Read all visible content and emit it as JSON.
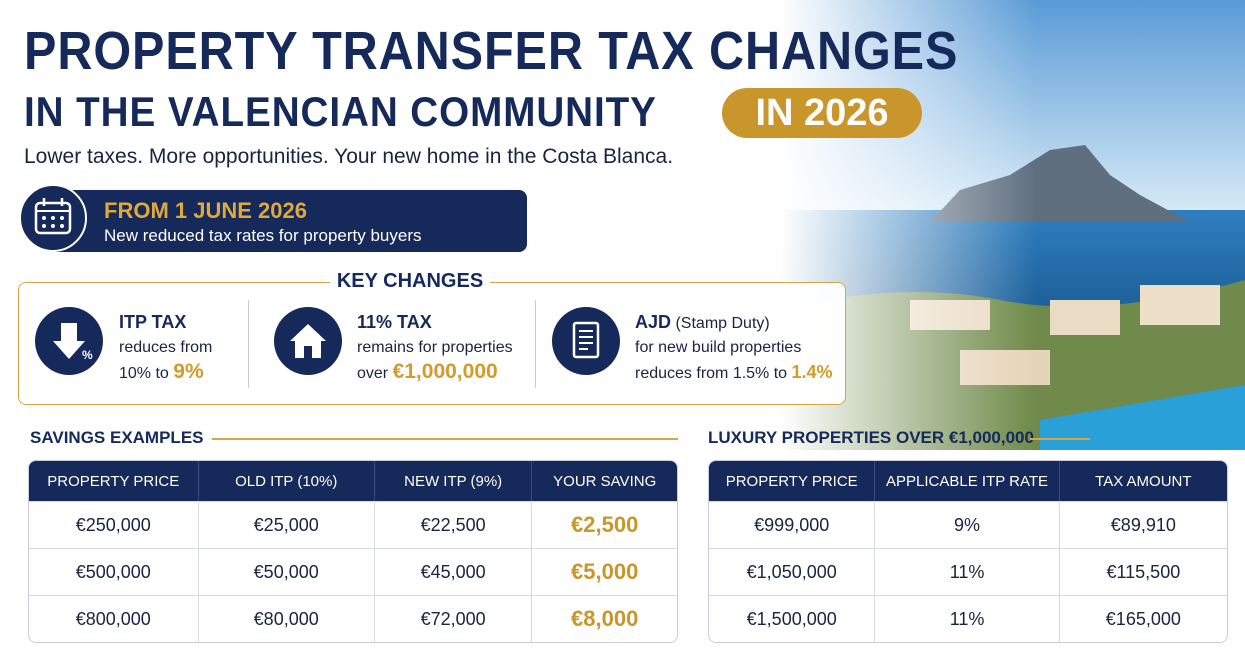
{
  "header": {
    "title_line1": "PROPERTY TRANSFER TAX CHANGES",
    "title_line2": "IN THE VALENCIAN COMMUNITY",
    "badge": "IN 2026",
    "subtitle": "Lower taxes. More opportunities. Your new home in the Costa Blanca."
  },
  "banner": {
    "date": "FROM 1 JUNE 2026",
    "text": "New reduced tax rates for property buyers"
  },
  "key_changes": {
    "title": "KEY CHANGES",
    "items": [
      {
        "title": "ITP TAX",
        "line1": "reduces from",
        "line2": "10% to",
        "highlight": "9%"
      },
      {
        "title": "11% TAX",
        "line1": "remains for properties",
        "line2": "over",
        "highlight": "€1,000,000"
      },
      {
        "title": "AJD",
        "title_note": "(Stamp Duty)",
        "line1": "for new build properties",
        "line2": "reduces from 1.5% to",
        "highlight": "1.4%"
      }
    ]
  },
  "savings": {
    "title": "SAVINGS EXAMPLES",
    "headers": [
      "PROPERTY PRICE",
      "OLD ITP (10%)",
      "NEW ITP (9%)",
      "YOUR SAVING"
    ],
    "rows": [
      [
        "€250,000",
        "€25,000",
        "€22,500",
        "€2,500"
      ],
      [
        "€500,000",
        "€50,000",
        "€45,000",
        "€5,000"
      ],
      [
        "€800,000",
        "€80,000",
        "€72,000",
        "€8,000"
      ]
    ]
  },
  "luxury": {
    "title": "LUXURY PROPERTIES OVER €1,000,000",
    "headers": [
      "PROPERTY PRICE",
      "APPLICABLE ITP RATE",
      "TAX AMOUNT"
    ],
    "rows": [
      [
        "€999,000",
        "9%",
        "€89,910"
      ],
      [
        "€1,050,000",
        "11%",
        "€115,500"
      ],
      [
        "€1,500,000",
        "11%",
        "€165,000"
      ]
    ]
  }
}
